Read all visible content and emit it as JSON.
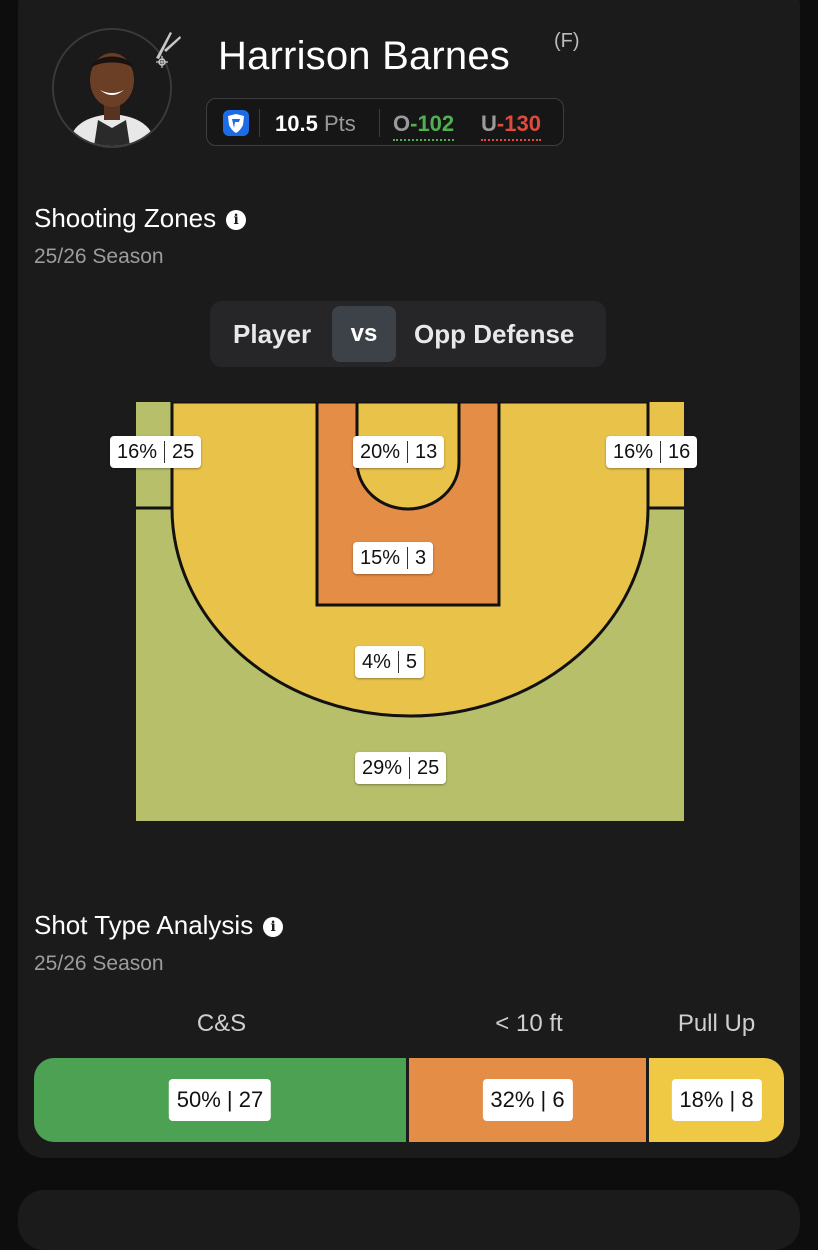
{
  "player": {
    "name": "Harrison Barnes",
    "position": "(F)"
  },
  "prop": {
    "line": "10.5",
    "unit": "Pts",
    "over_label": "O",
    "over_odds": "-102",
    "under_label": "U",
    "under_odds": "-130"
  },
  "shooting_zones": {
    "title": "Shooting Zones",
    "season": "25/26 Season",
    "toggle": {
      "left": "Player",
      "middle": "vs",
      "right": "Opp Defense"
    },
    "zones": [
      {
        "id": "left-corner-3",
        "pct": "16%",
        "rank": "25",
        "color": "#b7bf6b"
      },
      {
        "id": "restricted-area",
        "pct": "20%",
        "rank": "13",
        "color": "#e9c24a"
      },
      {
        "id": "right-corner-3",
        "pct": "16%",
        "rank": "16",
        "color": "#e9c24a"
      },
      {
        "id": "paint",
        "pct": "15%",
        "rank": "3",
        "color": "#e38d47"
      },
      {
        "id": "mid-range",
        "pct": "4%",
        "rank": "5",
        "color": "#e9c24a"
      },
      {
        "id": "above-break-3",
        "pct": "29%",
        "rank": "25",
        "color": "#b7bf6b"
      }
    ]
  },
  "shot_types": {
    "title": "Shot Type Analysis",
    "season": "25/26 Season",
    "types": [
      {
        "name": "C&S",
        "pct": "50%",
        "rank": "27",
        "share": 0.5,
        "color": "#4ca152"
      },
      {
        "name": "< 10 ft",
        "pct": "32%",
        "rank": "6",
        "share": 0.32,
        "color": "#e38d47"
      },
      {
        "name": "Pull Up",
        "pct": "18%",
        "rank": "8",
        "share": 0.18,
        "color": "#efc844"
      }
    ]
  },
  "icons": {
    "book": "fanduel-shield-icon",
    "team": "spurs-logo-icon",
    "info": "info-icon"
  }
}
